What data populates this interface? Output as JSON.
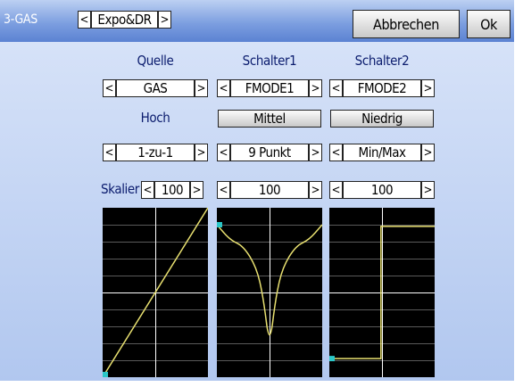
{
  "header": {
    "model_label": "3-GAS",
    "page_selector": {
      "value": "Expo&DR",
      "left": "<",
      "right": ">"
    },
    "cancel_label": "Abbrechen",
    "ok_label": "Ok"
  },
  "columns": [
    {
      "source_caption": "Quelle",
      "source_value": "GAS",
      "mode_label": "Hoch",
      "curve_type": "1-zu-1",
      "scale_value": "100",
      "curve": "linear"
    },
    {
      "source_caption": "Schalter1",
      "source_value": "FMODE1",
      "mode_label": "Mittel",
      "curve_type": "9 Punkt",
      "scale_value": "100",
      "curve": "9-point"
    },
    {
      "source_caption": "Schalter2",
      "source_value": "FMODE2",
      "mode_label": "Niedrig",
      "curve_type": "Min/Max",
      "scale_value": "100",
      "curve": "min-max"
    }
  ],
  "scale_label": "Skalier",
  "arrows": {
    "left": "<",
    "right": ">"
  },
  "colors": {
    "header_top": "#bcd0f2",
    "header_bottom": "#5b82d2",
    "body_top": "#d6e2f8",
    "body_bottom": "#b1c7ef",
    "label_text": "#0b1c6e",
    "graph_bg": "#000000",
    "graph_grid": "#5a5a5a",
    "graph_axis": "#ffffff",
    "curve": "#e8e070",
    "endpoint": "#2bc7c7"
  }
}
